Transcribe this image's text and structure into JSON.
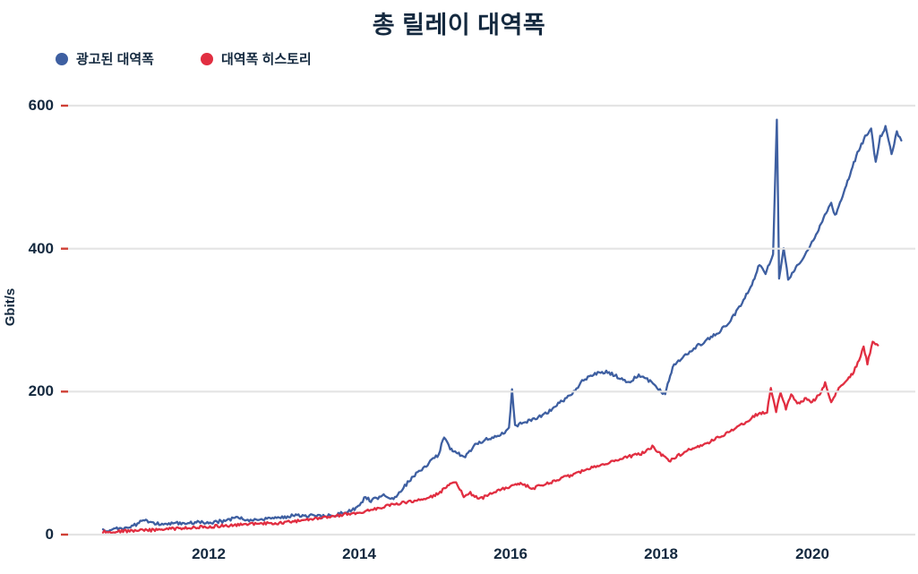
{
  "title": "총 릴레이 대역폭",
  "legend": {
    "advertised": {
      "label": "광고된 대역폭",
      "color": "#3e5fa1"
    },
    "history": {
      "label": "대역폭 히스토리",
      "color": "#e12e41"
    }
  },
  "y_axis": {
    "label": "Gbit/s",
    "ticks": [
      "0",
      "200",
      "400",
      "600"
    ]
  },
  "x_axis": {
    "ticks": [
      "2012",
      "2014",
      "2016",
      "2018",
      "2020"
    ]
  },
  "colors": {
    "text": "#14293f",
    "gridline": "#e4e4e4",
    "tick_mark": "#cf4036",
    "advertised_line": "#3e5fa1",
    "history_line": "#e12e41",
    "background": "#ffffff"
  },
  "chart_data": {
    "type": "line",
    "title": "총 릴레이 대역폭",
    "xlabel": "",
    "ylabel": "Gbit/s",
    "ylim": [
      0,
      600
    ],
    "xlim": [
      2010.4,
      2021.3
    ],
    "x_ticks": [
      2012,
      2014,
      2016,
      2018,
      2020
    ],
    "y_ticks": [
      0,
      200,
      400,
      600
    ],
    "grid": "horizontal-only",
    "legend_position": "top-left",
    "series": [
      {
        "name": "광고된 대역폭",
        "color": "#3e5fa1",
        "points": [
          [
            2010.6,
            5
          ],
          [
            2010.8,
            8
          ],
          [
            2011.0,
            12
          ],
          [
            2011.15,
            21
          ],
          [
            2011.25,
            15
          ],
          [
            2011.4,
            15
          ],
          [
            2011.6,
            16
          ],
          [
            2011.8,
            17
          ],
          [
            2012.0,
            17
          ],
          [
            2012.2,
            19
          ],
          [
            2012.4,
            24
          ],
          [
            2012.5,
            20
          ],
          [
            2012.7,
            21
          ],
          [
            2012.9,
            23
          ],
          [
            2013.1,
            26
          ],
          [
            2013.3,
            27
          ],
          [
            2013.5,
            25
          ],
          [
            2013.7,
            28
          ],
          [
            2013.9,
            34
          ],
          [
            2014.0,
            42
          ],
          [
            2014.08,
            53
          ],
          [
            2014.15,
            47
          ],
          [
            2014.3,
            55
          ],
          [
            2014.45,
            50
          ],
          [
            2014.6,
            68
          ],
          [
            2014.75,
            85
          ],
          [
            2014.9,
            98
          ],
          [
            2015.05,
            112
          ],
          [
            2015.12,
            138
          ],
          [
            2015.2,
            121
          ],
          [
            2015.3,
            113
          ],
          [
            2015.4,
            109
          ],
          [
            2015.55,
            127
          ],
          [
            2015.7,
            134
          ],
          [
            2015.85,
            139
          ],
          [
            2015.98,
            148
          ],
          [
            2016.02,
            201
          ],
          [
            2016.06,
            152
          ],
          [
            2016.2,
            158
          ],
          [
            2016.35,
            163
          ],
          [
            2016.5,
            172
          ],
          [
            2016.65,
            184
          ],
          [
            2016.8,
            196
          ],
          [
            2016.95,
            214
          ],
          [
            2017.1,
            224
          ],
          [
            2017.25,
            228
          ],
          [
            2017.4,
            222
          ],
          [
            2017.55,
            213
          ],
          [
            2017.7,
            222
          ],
          [
            2017.85,
            215
          ],
          [
            2018.0,
            200
          ],
          [
            2018.05,
            197
          ],
          [
            2018.15,
            235
          ],
          [
            2018.3,
            250
          ],
          [
            2018.45,
            262
          ],
          [
            2018.6,
            272
          ],
          [
            2018.75,
            282
          ],
          [
            2018.9,
            298
          ],
          [
            2019.05,
            320
          ],
          [
            2019.2,
            350
          ],
          [
            2019.3,
            378
          ],
          [
            2019.38,
            366
          ],
          [
            2019.48,
            392
          ],
          [
            2019.53,
            578
          ],
          [
            2019.56,
            360
          ],
          [
            2019.62,
            400
          ],
          [
            2019.68,
            357
          ],
          [
            2019.8,
            375
          ],
          [
            2019.92,
            395
          ],
          [
            2020.05,
            418
          ],
          [
            2020.15,
            442
          ],
          [
            2020.25,
            464
          ],
          [
            2020.3,
            446
          ],
          [
            2020.4,
            473
          ],
          [
            2020.5,
            503
          ],
          [
            2020.6,
            535
          ],
          [
            2020.7,
            556
          ],
          [
            2020.78,
            566
          ],
          [
            2020.84,
            520
          ],
          [
            2020.9,
            556
          ],
          [
            2020.97,
            570
          ],
          [
            2021.05,
            532
          ],
          [
            2021.12,
            562
          ],
          [
            2021.18,
            552
          ]
        ]
      },
      {
        "name": "대역폭 히스토리",
        "color": "#e12e41",
        "points": [
          [
            2010.6,
            4
          ],
          [
            2010.9,
            5
          ],
          [
            2011.2,
            6
          ],
          [
            2011.5,
            8
          ],
          [
            2011.8,
            10
          ],
          [
            2012.0,
            11
          ],
          [
            2012.3,
            13
          ],
          [
            2012.6,
            15
          ],
          [
            2012.9,
            16
          ],
          [
            2013.2,
            19
          ],
          [
            2013.5,
            23
          ],
          [
            2013.8,
            28
          ],
          [
            2014.0,
            31
          ],
          [
            2014.2,
            36
          ],
          [
            2014.4,
            41
          ],
          [
            2014.6,
            45
          ],
          [
            2014.8,
            48
          ],
          [
            2015.0,
            55
          ],
          [
            2015.1,
            62
          ],
          [
            2015.2,
            70
          ],
          [
            2015.28,
            73
          ],
          [
            2015.38,
            53
          ],
          [
            2015.45,
            59
          ],
          [
            2015.6,
            50
          ],
          [
            2015.75,
            58
          ],
          [
            2015.9,
            64
          ],
          [
            2016.05,
            69
          ],
          [
            2016.15,
            71
          ],
          [
            2016.3,
            65
          ],
          [
            2016.45,
            70
          ],
          [
            2016.6,
            76
          ],
          [
            2016.8,
            83
          ],
          [
            2017.0,
            91
          ],
          [
            2017.15,
            97
          ],
          [
            2017.3,
            101
          ],
          [
            2017.45,
            105
          ],
          [
            2017.6,
            110
          ],
          [
            2017.75,
            114
          ],
          [
            2017.88,
            123
          ],
          [
            2018.0,
            112
          ],
          [
            2018.1,
            103
          ],
          [
            2018.25,
            112
          ],
          [
            2018.4,
            120
          ],
          [
            2018.5,
            124
          ],
          [
            2018.65,
            130
          ],
          [
            2018.8,
            138
          ],
          [
            2018.95,
            147
          ],
          [
            2019.1,
            156
          ],
          [
            2019.25,
            167
          ],
          [
            2019.4,
            172
          ],
          [
            2019.45,
            205
          ],
          [
            2019.52,
            172
          ],
          [
            2019.58,
            200
          ],
          [
            2019.65,
            176
          ],
          [
            2019.72,
            196
          ],
          [
            2019.8,
            182
          ],
          [
            2019.9,
            190
          ],
          [
            2020.0,
            186
          ],
          [
            2020.1,
            196
          ],
          [
            2020.17,
            212
          ],
          [
            2020.25,
            185
          ],
          [
            2020.35,
            205
          ],
          [
            2020.45,
            215
          ],
          [
            2020.55,
            228
          ],
          [
            2020.62,
            245
          ],
          [
            2020.68,
            262
          ],
          [
            2020.73,
            240
          ],
          [
            2020.8,
            268
          ],
          [
            2020.87,
            265
          ]
        ]
      }
    ]
  }
}
